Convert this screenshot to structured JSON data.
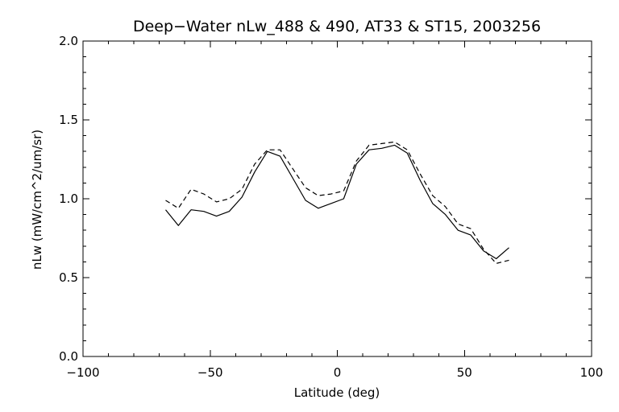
{
  "chart_data": {
    "type": "line",
    "title": "Deep−Water nLw_488 & 490, AT33 & ST15, 2003256",
    "xlabel": "Latitude (deg)",
    "ylabel": "nLw (mW/cm^2/um/sr)",
    "xlim": [
      -100,
      100
    ],
    "ylim": [
      0.0,
      2.0
    ],
    "xticks": [
      -100,
      -50,
      0,
      50,
      100
    ],
    "xtick_labels": [
      "−100",
      "−50",
      "0",
      "50",
      "100"
    ],
    "yticks": [
      0.0,
      0.5,
      1.0,
      1.5,
      2.0
    ],
    "ytick_labels": [
      "0.0",
      "0.5",
      "1.0",
      "1.5",
      "2.0"
    ],
    "x_minor_step": 10,
    "y_minor_step": 0.1,
    "grid": false,
    "legend": "none",
    "series": [
      {
        "style": "solid",
        "color": "#000000",
        "x": [
          -67.5,
          -62.5,
          -57.5,
          -52.5,
          -47.5,
          -42.5,
          -37.5,
          -32.5,
          -27.5,
          -22.5,
          -17.5,
          -12.5,
          -7.5,
          -2.5,
          2.5,
          7.5,
          12.5,
          17.5,
          22.5,
          27.5,
          32.5,
          37.5,
          42.5,
          47.5,
          52.5,
          57.5,
          62.5,
          67.5
        ],
        "y": [
          0.93,
          0.83,
          0.93,
          0.92,
          0.89,
          0.92,
          1.01,
          1.17,
          1.3,
          1.27,
          1.13,
          0.99,
          0.94,
          0.97,
          1.0,
          1.22,
          1.31,
          1.32,
          1.34,
          1.29,
          1.12,
          0.97,
          0.9,
          0.8,
          0.77,
          0.67,
          0.62,
          0.69
        ]
      },
      {
        "style": "dashed",
        "color": "#000000",
        "x": [
          -67.5,
          -62.5,
          -57.5,
          -52.5,
          -47.5,
          -42.5,
          -37.5,
          -32.5,
          -27.5,
          -22.5,
          -17.5,
          -12.5,
          -7.5,
          -2.5,
          2.5,
          7.5,
          12.5,
          17.5,
          22.5,
          27.5,
          32.5,
          37.5,
          42.5,
          47.5,
          52.5,
          57.5,
          62.5,
          67.5
        ],
        "y": [
          0.99,
          0.94,
          1.06,
          1.03,
          0.98,
          1.0,
          1.06,
          1.22,
          1.31,
          1.31,
          1.19,
          1.07,
          1.02,
          1.03,
          1.05,
          1.24,
          1.34,
          1.35,
          1.36,
          1.31,
          1.16,
          1.02,
          0.95,
          0.84,
          0.81,
          0.68,
          0.59,
          0.61
        ]
      }
    ]
  }
}
